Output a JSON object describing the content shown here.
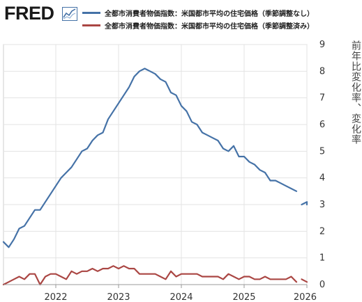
{
  "header": {
    "logo": "FRED",
    "logo_mark_icon": "fred-trend-chart-icon"
  },
  "legend": [
    {
      "label": "全都市消費者物価指数：米国都市平均の住宅価格（季節調整なし）",
      "color": "#4572a7"
    },
    {
      "label": "全都市消費者物価指数：米国都市平均の住宅価格（季節調整済み）",
      "color": "#aa4643"
    }
  ],
  "chart_data": {
    "type": "line",
    "xlim": [
      "2021-03-01",
      "2026-01-01"
    ],
    "x_ticks": [
      "2022",
      "2023",
      "2024",
      "2025",
      "2026"
    ],
    "ylim": [
      0,
      9
    ],
    "y_ticks": [
      0,
      1,
      2,
      3,
      4,
      5,
      6,
      7,
      8,
      9
    ],
    "ylabel": "前年比変化率、変化率",
    "grid": true,
    "legend_position": "top",
    "series": [
      {
        "name": "全都市消費者物価指数：米国都市平均の住宅価格（季節調整なし）",
        "color": "#4572a7",
        "segments": [
          [
            [
              "2021-03",
              1.6
            ],
            [
              "2021-04",
              1.4
            ],
            [
              "2021-05",
              1.7
            ],
            [
              "2021-06",
              2.1
            ],
            [
              "2021-07",
              2.2
            ],
            [
              "2021-08",
              2.5
            ],
            [
              "2021-09",
              2.8
            ],
            [
              "2021-10",
              2.8
            ],
            [
              "2021-11",
              3.1
            ],
            [
              "2021-12",
              3.4
            ],
            [
              "2022-01",
              3.7
            ],
            [
              "2022-02",
              4.0
            ],
            [
              "2022-03",
              4.2
            ],
            [
              "2022-04",
              4.4
            ],
            [
              "2022-05",
              4.7
            ],
            [
              "2022-06",
              5.0
            ],
            [
              "2022-07",
              5.1
            ],
            [
              "2022-08",
              5.4
            ],
            [
              "2022-09",
              5.6
            ],
            [
              "2022-10",
              5.7
            ],
            [
              "2022-11",
              6.2
            ],
            [
              "2022-12",
              6.5
            ],
            [
              "2023-01",
              6.8
            ],
            [
              "2023-02",
              7.1
            ],
            [
              "2023-03",
              7.4
            ],
            [
              "2023-04",
              7.8
            ],
            [
              "2023-05",
              8.0
            ],
            [
              "2023-06",
              8.1
            ],
            [
              "2023-07",
              8.0
            ],
            [
              "2023-08",
              7.9
            ],
            [
              "2023-09",
              7.7
            ],
            [
              "2023-10",
              7.6
            ],
            [
              "2023-11",
              7.2
            ],
            [
              "2023-12",
              7.1
            ],
            [
              "2024-01",
              6.7
            ],
            [
              "2024-02",
              6.5
            ],
            [
              "2024-03",
              6.1
            ],
            [
              "2024-04",
              6.0
            ],
            [
              "2024-05",
              5.7
            ],
            [
              "2024-06",
              5.6
            ],
            [
              "2024-07",
              5.5
            ],
            [
              "2024-08",
              5.4
            ],
            [
              "2024-09",
              5.1
            ],
            [
              "2024-10",
              5.0
            ],
            [
              "2024-11",
              5.2
            ],
            [
              "2024-12",
              4.8
            ],
            [
              "2025-01",
              4.8
            ],
            [
              "2025-02",
              4.6
            ],
            [
              "2025-03",
              4.5
            ],
            [
              "2025-04",
              4.3
            ],
            [
              "2025-05",
              4.2
            ],
            [
              "2025-06",
              3.9
            ],
            [
              "2025-07",
              3.9
            ],
            [
              "2025-08",
              3.8
            ],
            [
              "2025-09",
              3.7
            ],
            [
              "2025-10",
              3.6
            ],
            [
              "2025-11",
              3.5
            ]
          ],
          [
            [
              "2025-12",
              3.0
            ],
            [
              "2026-01",
              3.1
            ],
            [
              "2026-02",
              3.0
            ]
          ]
        ]
      },
      {
        "name": "全都市消費者物価指数：米国都市平均の住宅価格（季節調整済み）",
        "color": "#aa4643",
        "segments": [
          [
            [
              "2021-03",
              0.0
            ],
            [
              "2021-04",
              0.1
            ],
            [
              "2021-05",
              0.2
            ],
            [
              "2021-06",
              0.3
            ],
            [
              "2021-07",
              0.2
            ],
            [
              "2021-08",
              0.4
            ],
            [
              "2021-09",
              0.4
            ],
            [
              "2021-10",
              0.0
            ],
            [
              "2021-11",
              0.3
            ],
            [
              "2021-12",
              0.4
            ],
            [
              "2022-01",
              0.4
            ],
            [
              "2022-02",
              0.3
            ],
            [
              "2022-03",
              0.2
            ],
            [
              "2022-04",
              0.5
            ],
            [
              "2022-05",
              0.4
            ],
            [
              "2022-06",
              0.5
            ],
            [
              "2022-07",
              0.5
            ],
            [
              "2022-08",
              0.6
            ],
            [
              "2022-09",
              0.5
            ],
            [
              "2022-10",
              0.6
            ],
            [
              "2022-11",
              0.6
            ],
            [
              "2022-12",
              0.7
            ],
            [
              "2023-01",
              0.6
            ],
            [
              "2023-02",
              0.7
            ],
            [
              "2023-03",
              0.6
            ],
            [
              "2023-04",
              0.6
            ],
            [
              "2023-05",
              0.4
            ],
            [
              "2023-06",
              0.4
            ],
            [
              "2023-07",
              0.4
            ],
            [
              "2023-08",
              0.4
            ],
            [
              "2023-09",
              0.3
            ],
            [
              "2023-10",
              0.2
            ],
            [
              "2023-11",
              0.5
            ],
            [
              "2023-12",
              0.3
            ],
            [
              "2024-01",
              0.4
            ],
            [
              "2024-02",
              0.4
            ],
            [
              "2024-03",
              0.4
            ],
            [
              "2024-04",
              0.4
            ],
            [
              "2024-05",
              0.3
            ],
            [
              "2024-06",
              0.3
            ],
            [
              "2024-07",
              0.3
            ],
            [
              "2024-08",
              0.3
            ],
            [
              "2024-09",
              0.2
            ],
            [
              "2024-10",
              0.4
            ],
            [
              "2024-11",
              0.3
            ],
            [
              "2024-12",
              0.2
            ],
            [
              "2025-01",
              0.3
            ],
            [
              "2025-02",
              0.3
            ],
            [
              "2025-03",
              0.2
            ],
            [
              "2025-04",
              0.2
            ],
            [
              "2025-05",
              0.3
            ],
            [
              "2025-06",
              0.2
            ],
            [
              "2025-07",
              0.2
            ],
            [
              "2025-08",
              0.2
            ],
            [
              "2025-09",
              0.2
            ],
            [
              "2025-10",
              0.3
            ],
            [
              "2025-11",
              0.1
            ]
          ],
          [
            [
              "2025-12",
              0.2
            ],
            [
              "2026-01",
              0.1
            ]
          ]
        ]
      }
    ]
  }
}
